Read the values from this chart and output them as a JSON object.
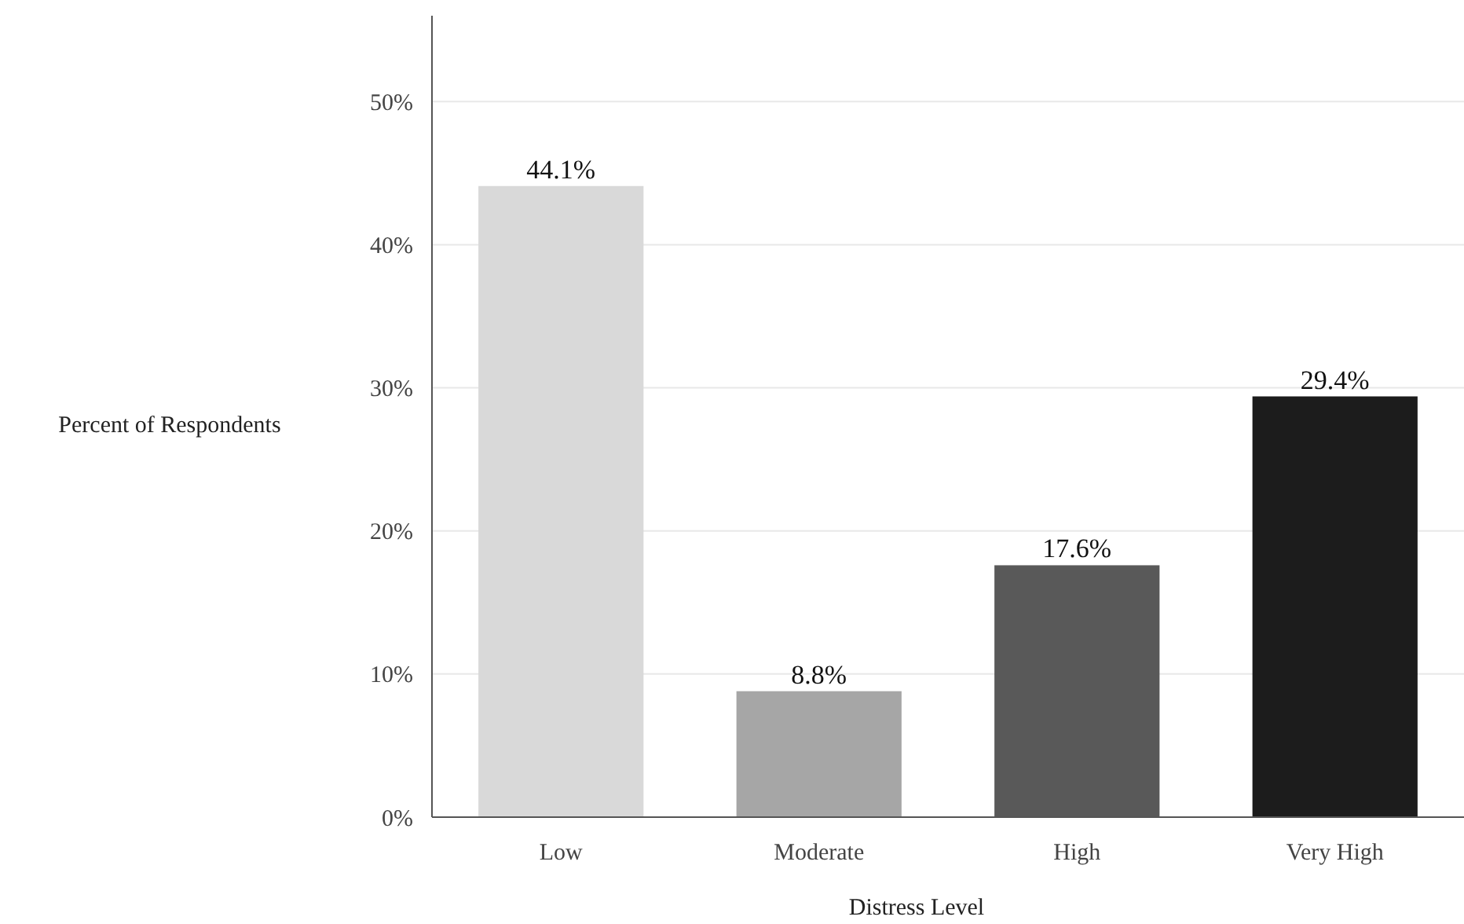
{
  "chart_data": {
    "type": "bar",
    "xlabel": "Distress Level",
    "ylabel": "Percent of Respondents",
    "categories": [
      "Low",
      "Moderate",
      "High",
      "Very High"
    ],
    "values": [
      44.1,
      8.8,
      17.6,
      29.4
    ],
    "colors": [
      "#d9d9d9",
      "#a6a6a6",
      "#595959",
      "#1c1c1c"
    ],
    "value_labels": [
      "44.1%",
      "8.8%",
      "17.6%",
      "29.4%"
    ],
    "ylim": [
      0,
      56
    ],
    "yticks": [
      {
        "value": 0,
        "label": "0%"
      },
      {
        "value": 10,
        "label": "10%"
      },
      {
        "value": 20,
        "label": "20%"
      },
      {
        "value": 30,
        "label": "30%"
      },
      {
        "value": 40,
        "label": "40%"
      },
      {
        "value": 50,
        "label": "50%"
      }
    ],
    "grid": "y"
  }
}
